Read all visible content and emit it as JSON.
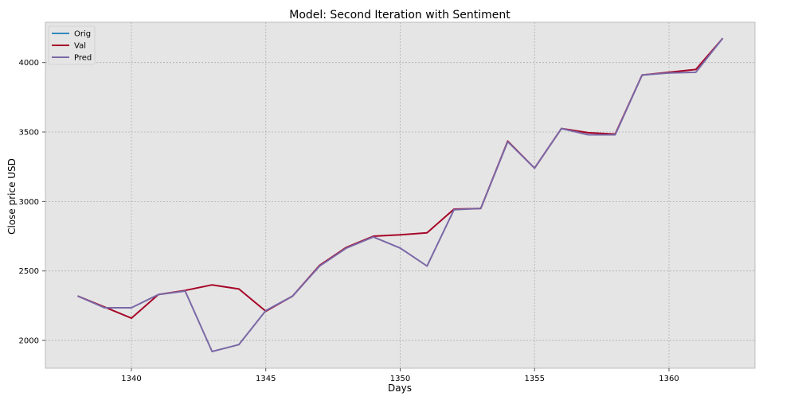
{
  "chart_data": {
    "type": "line",
    "title": "Model: Second Iteration with Sentiment",
    "xlabel": "Days",
    "ylabel": "Close price USD",
    "xlim": [
      1336.8,
      1363.2
    ],
    "ylim": [
      1800,
      4290
    ],
    "x_ticks": [
      1340,
      1345,
      1350,
      1355,
      1360
    ],
    "y_ticks": [
      2000,
      2500,
      3000,
      3500,
      4000
    ],
    "grid": true,
    "legend_position": "top-left",
    "series": [
      {
        "name": "Orig",
        "color": "#348ABD",
        "x": [],
        "y": []
      },
      {
        "name": "Val",
        "color": "#A60628",
        "x": [
          1338,
          1339,
          1340,
          1341,
          1342,
          1343,
          1344,
          1345,
          1346,
          1347,
          1348,
          1349,
          1350,
          1351,
          1352,
          1353,
          1354,
          1355,
          1356,
          1357,
          1358,
          1359,
          1360,
          1361,
          1362
        ],
        "y": [
          2320,
          2240,
          2160,
          2330,
          2360,
          2400,
          2370,
          2210,
          2320,
          2540,
          2670,
          2750,
          2760,
          2775,
          2945,
          2950,
          3435,
          3240,
          3525,
          3495,
          3485,
          3910,
          3930,
          3950,
          4175
        ]
      },
      {
        "name": "Pred",
        "color": "#7A68A6",
        "x": [
          1338,
          1339,
          1340,
          1341,
          1342,
          1343,
          1344,
          1345,
          1346,
          1347,
          1348,
          1349,
          1350,
          1351,
          1352,
          1353,
          1354,
          1355,
          1356,
          1357,
          1358,
          1359,
          1360,
          1361,
          1362
        ],
        "y": [
          2320,
          2235,
          2235,
          2330,
          2355,
          1920,
          1970,
          2215,
          2320,
          2535,
          2665,
          2745,
          2665,
          2535,
          2940,
          2950,
          3430,
          3240,
          3525,
          3480,
          3480,
          3910,
          3925,
          3930,
          4175
        ]
      }
    ]
  }
}
